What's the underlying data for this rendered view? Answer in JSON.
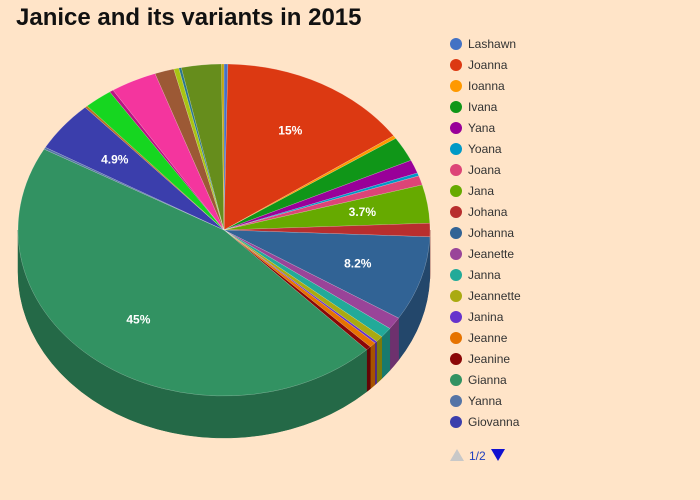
{
  "chart_data": {
    "type": "pie",
    "title": "Janice and its variants in 2015",
    "slices": [
      {
        "name": "Lashawn",
        "value": 0.3,
        "color": "#4472C4"
      },
      {
        "name": "Joanna",
        "value": 15,
        "color": "#DC3912"
      },
      {
        "name": "Ioanna",
        "value": 0.3,
        "color": "#FF9900"
      },
      {
        "name": "Ivana",
        "value": 2.4,
        "color": "#109618"
      },
      {
        "name": "Yana",
        "value": 1.3,
        "color": "#990099"
      },
      {
        "name": "Yoana",
        "value": 0.3,
        "color": "#0099C6"
      },
      {
        "name": "Joana",
        "value": 0.9,
        "color": "#DD4477"
      },
      {
        "name": "Jana",
        "value": 3.7,
        "color": "#66AA00"
      },
      {
        "name": "Johana",
        "value": 1.3,
        "color": "#B82E2E"
      },
      {
        "name": "Johanna",
        "value": 8.2,
        "color": "#316395"
      },
      {
        "name": "Jeanette",
        "value": 1.2,
        "color": "#994499"
      },
      {
        "name": "Janna",
        "value": 1.0,
        "color": "#22AA99"
      },
      {
        "name": "Jeannette",
        "value": 0.6,
        "color": "#AAAA11"
      },
      {
        "name": "Janina",
        "value": 0.2,
        "color": "#6633CC"
      },
      {
        "name": "Jeanne",
        "value": 0.5,
        "color": "#E67300"
      },
      {
        "name": "Jeanine",
        "value": 0.4,
        "color": "#8B0707"
      },
      {
        "name": "Gianna",
        "value": 45,
        "color": "#329262"
      },
      {
        "name": "Yanna",
        "value": 0.2,
        "color": "#5574A6"
      },
      {
        "name": "Giovanna",
        "value": 4.9,
        "color": "#3B3EAC"
      },
      {
        "name": "",
        "value": 0.2,
        "color": "#B77322"
      },
      {
        "name": "",
        "value": 2.2,
        "color": "#16D620"
      },
      {
        "name": "",
        "value": 0.3,
        "color": "#B91383"
      },
      {
        "name": "",
        "value": 3.6,
        "color": "#F4359E"
      },
      {
        "name": "",
        "value": 1.5,
        "color": "#9C5935"
      },
      {
        "name": "",
        "value": 0.4,
        "color": "#A9C413"
      },
      {
        "name": "",
        "value": 0.2,
        "color": "#2A778D"
      },
      {
        "name": "",
        "value": 3.1,
        "color": "#668D1C"
      },
      {
        "name": "",
        "value": 0.2,
        "color": "#BEA413"
      }
    ],
    "data_labels": [
      {
        "slice": "Joanna",
        "text": "15%"
      },
      {
        "slice": "Jana",
        "text": "3.7%"
      },
      {
        "slice": "Johanna",
        "text": "8.2%"
      },
      {
        "slice": "Gianna",
        "text": "45%"
      },
      {
        "slice": "Giovanna",
        "text": "4.9%"
      }
    ],
    "legend_position": "right",
    "legend_page": "1/2"
  },
  "pager": {
    "text": "1/2"
  }
}
